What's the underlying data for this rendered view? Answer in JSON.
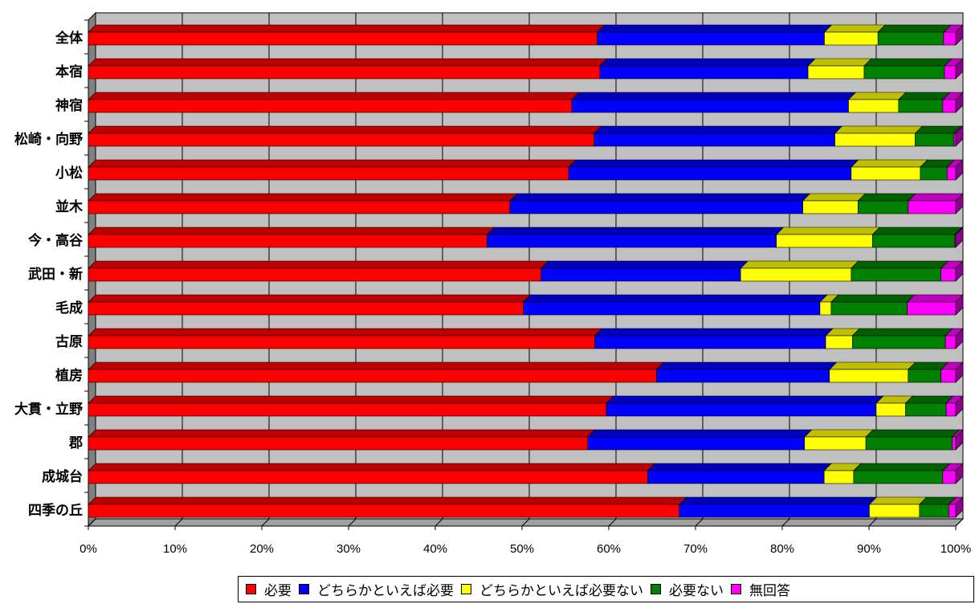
{
  "chart_data": {
    "type": "bar",
    "orientation": "horizontal",
    "stacked": "percent",
    "categories": [
      "全体",
      "本宿",
      "神宿",
      "松崎・向野",
      "小松",
      "並木",
      "今・高谷",
      "武田・新",
      "毛成",
      "古原",
      "植房",
      "大貫・立野",
      "郡",
      "成城台",
      "四季の丘"
    ],
    "series": [
      {
        "name": "必要",
        "color": "#ff0000",
        "values": [
          58.9,
          59.2,
          55.9,
          58.6,
          55.6,
          48.8,
          46.0,
          52.4,
          50.3,
          58.8,
          65.7,
          59.9,
          57.8,
          64.6,
          68.4
        ]
      },
      {
        "name": "どちらかといえば必要",
        "color": "#0000ff",
        "values": [
          26.3,
          24.1,
          32.0,
          27.9,
          32.7,
          33.9,
          33.4,
          23.1,
          34.3,
          26.8,
          20.0,
          31.2,
          25.1,
          20.4,
          22.0
        ]
      },
      {
        "name": "どちらかといえば必要ない",
        "color": "#ffff00",
        "values": [
          6.2,
          6.5,
          5.8,
          9.3,
          8.0,
          6.4,
          11.1,
          12.8,
          1.3,
          3.1,
          9.1,
          3.4,
          7.1,
          3.4,
          5.8
        ]
      },
      {
        "name": "必要ない",
        "color": "#008000",
        "values": [
          7.6,
          9.3,
          5.1,
          4.5,
          3.1,
          5.8,
          9.5,
          10.4,
          8.8,
          10.8,
          3.8,
          4.7,
          10.0,
          10.3,
          3.4
        ]
      },
      {
        "name": "無回答",
        "color": "#ff00ff",
        "values": [
          1.4,
          1.3,
          1.5,
          0.2,
          1.0,
          5.5,
          0.1,
          1.7,
          5.6,
          1.2,
          1.7,
          1.1,
          0.4,
          1.5,
          0.8
        ]
      }
    ],
    "xlim": [
      0,
      100
    ],
    "xticks": [
      "0%",
      "10%",
      "20%",
      "30%",
      "40%",
      "50%",
      "60%",
      "70%",
      "80%",
      "90%",
      "100%"
    ],
    "grid": true,
    "legend_position": "bottom-right"
  },
  "legend": {
    "items": [
      {
        "label": "必要",
        "color": "#ff0000"
      },
      {
        "label": "どちらかといえば必要",
        "color": "#0000ff"
      },
      {
        "label": "どちらかといえば必要ない",
        "color": "#ffff00"
      },
      {
        "label": "必要ない",
        "color": "#008000"
      },
      {
        "label": "無回答",
        "color": "#ff00ff"
      }
    ]
  }
}
